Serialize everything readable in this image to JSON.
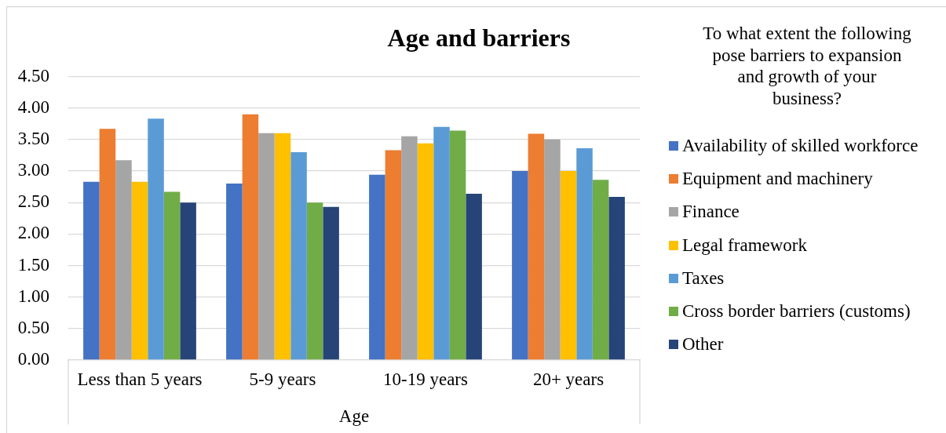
{
  "chart_data": {
    "type": "bar",
    "title": "Age and barriers",
    "xlabel": "Age",
    "legend_title": "To what extent the following pose barriers to expansion and growth of your business?",
    "categories": [
      "Less than 5 years",
      "5-9 years",
      "10-19 years",
      "20+ years"
    ],
    "series": [
      {
        "name": "Availability of skilled workforce",
        "color": "#4472c4",
        "values": [
          2.83,
          2.8,
          2.94,
          3.0
        ]
      },
      {
        "name": "Equipment and machinery",
        "color": "#ed7d31",
        "values": [
          3.67,
          3.9,
          3.33,
          3.59
        ]
      },
      {
        "name": "Finance",
        "color": "#a5a5a5",
        "values": [
          3.17,
          3.6,
          3.55,
          3.5
        ]
      },
      {
        "name": "Legal framework",
        "color": "#ffc000",
        "values": [
          2.83,
          3.6,
          3.44,
          3.0
        ]
      },
      {
        "name": "Taxes",
        "color": "#5b9bd5",
        "values": [
          3.83,
          3.3,
          3.7,
          3.36
        ]
      },
      {
        "name": "Cross border barriers (customs)",
        "color": "#70ad47",
        "values": [
          2.67,
          2.5,
          3.64,
          2.86
        ]
      },
      {
        "name": "Other",
        "color": "#264478",
        "values": [
          2.5,
          2.43,
          2.64,
          2.59
        ]
      }
    ],
    "ylim": [
      0,
      4.5
    ],
    "yticks": [
      {
        "value": 0,
        "label": "0.00"
      },
      {
        "value": 0.5,
        "label": "0.50"
      },
      {
        "value": 1,
        "label": "1.00"
      },
      {
        "value": 1.5,
        "label": "1.50"
      },
      {
        "value": 2,
        "label": "2.00"
      },
      {
        "value": 2.5,
        "label": "2.50"
      },
      {
        "value": 3,
        "label": "3.00"
      },
      {
        "value": 3.5,
        "label": "3.50"
      },
      {
        "value": 4,
        "label": "4.00"
      },
      {
        "value": 4.5,
        "label": "4.50"
      }
    ],
    "grid": "y",
    "legend": "right"
  }
}
